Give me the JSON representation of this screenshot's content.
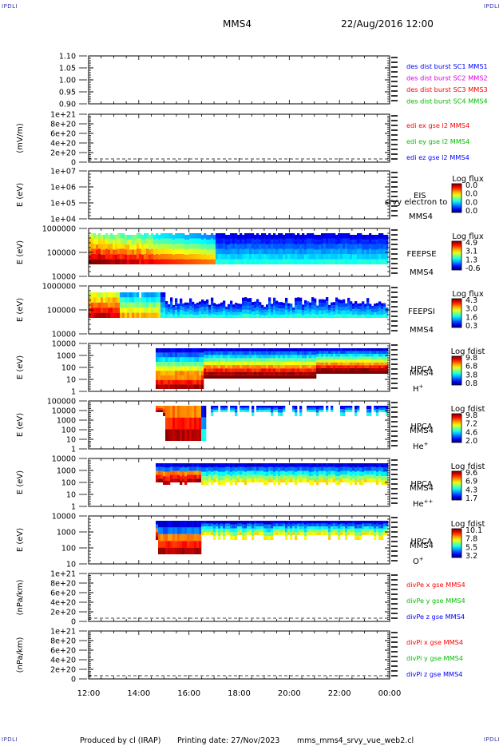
{
  "header": {
    "left": "MMS4",
    "right": "22/Aug/2016 12:00",
    "corner_tl": "IPDLI",
    "corner_tr": "IPDLI",
    "corner_bl": "IPDLI",
    "corner_br": "IPDLI"
  },
  "footer": {
    "producer": "Produced by cl (IRAP)",
    "printing": "Printing date: 27/Nov/2023",
    "script": "mms_mms4_srvy_vue_web2.cl"
  },
  "time_axis": {
    "tick_labels": [
      "12:00",
      "14:00",
      "16:00",
      "18:00",
      "20:00",
      "22:00",
      "00:00"
    ]
  },
  "colors": {
    "blue": "#0000ff",
    "magenta": "#e000e0",
    "red": "#ff0000",
    "green": "#00c000"
  },
  "chart_data": [
    {
      "type": "line",
      "ylim": [
        0.9,
        1.1
      ],
      "ytick_labels": [
        "1.10",
        "1.05",
        "1.00",
        "0.95",
        "0.90"
      ],
      "ylabel": "",
      "legend": [
        {
          "text": "des dist burst SC1 MMS1",
          "color": "#0000ff"
        },
        {
          "text": "des dist burst SC2 MMS2",
          "color": "#e000e0"
        },
        {
          "text": "des dist burst SC3 MMS3",
          "color": "#ff0000"
        },
        {
          "text": "des dist burst SC4 MMS4",
          "color": "#00c000"
        }
      ]
    },
    {
      "type": "line",
      "ylim": [
        0,
        1e+21
      ],
      "ytick_labels": [
        "1e+21",
        "8e+20",
        "6e+20",
        "4e+20",
        "2e+20",
        "0"
      ],
      "ylabel": "(mV/m)",
      "legend": [
        {
          "text": "edi ex gse l2 MMS4",
          "color": "#ff0000"
        },
        {
          "text": "edi ey gse l2 MMS4",
          "color": "#00c000"
        },
        {
          "text": "edi ez gse l2 MMS4",
          "color": "#0000ff"
        }
      ]
    },
    {
      "type": "heatmap",
      "ylabel": "E (eV)",
      "ytick_labels": [
        "1e+07",
        "1e+06",
        "1e+05",
        "1e+04"
      ],
      "instrument_lines": [
        "EIS",
        "srvy electron to",
        "MMS4"
      ],
      "colorbar": {
        "title": "Log flux",
        "ticks": [
          "0.0",
          "0.0",
          "0.0",
          "0.0"
        ]
      }
    },
    {
      "type": "heatmap",
      "ylabel": "E (eV)",
      "ytick_labels": [
        "1000000",
        "100000",
        "10000"
      ],
      "instrument_lines": [
        "FEEPSE",
        "MMS4"
      ],
      "colorbar": {
        "title": "Log flux",
        "ticks": [
          "4.9",
          "3.1",
          "1.3",
          "-0.6"
        ]
      }
    },
    {
      "type": "heatmap",
      "ylabel": "E (eV)",
      "ytick_labels": [
        "1000000",
        "100000",
        "10000"
      ],
      "instrument_lines": [
        "FEEPSI",
        "MMS4"
      ],
      "colorbar": {
        "title": "Log flux",
        "ticks": [
          "4.3",
          "3.0",
          "1.6",
          "0.3"
        ]
      }
    },
    {
      "type": "heatmap",
      "ylabel": "E (eV)",
      "ytick_labels": [
        "10000",
        "1000",
        "100",
        "10",
        "1"
      ],
      "instrument_lines": [
        "HPCA",
        "MMS4"
      ],
      "species": "H",
      "species_sup": "+",
      "colorbar": {
        "title": "Log fdist",
        "ticks": [
          "9.8",
          "6.8",
          "3.8",
          "0.8"
        ]
      }
    },
    {
      "type": "heatmap",
      "ylabel": "E (eV)",
      "ytick_labels": [
        "100000",
        "10000",
        "1000",
        "100",
        "10",
        "1"
      ],
      "instrument_lines": [
        "HPCA",
        "MMS4"
      ],
      "species": "He",
      "species_sup": "+",
      "colorbar": {
        "title": "Log fdist",
        "ticks": [
          "9.8",
          "7.2",
          "4.6",
          "2.0"
        ]
      }
    },
    {
      "type": "heatmap",
      "ylabel": "E (eV)",
      "ytick_labels": [
        "10000",
        "1000",
        "100",
        "10",
        "1"
      ],
      "instrument_lines": [
        "HPCA",
        "MMS4"
      ],
      "species": "He",
      "species_sup": "++",
      "colorbar": {
        "title": "Log fdist",
        "ticks": [
          "9.6",
          "6.9",
          "4.3",
          "1.7"
        ]
      }
    },
    {
      "type": "heatmap",
      "ylabel": "E (eV)",
      "ytick_labels": [
        "10000",
        "1000",
        "100",
        "10"
      ],
      "instrument_lines": [
        "HPCA",
        "MMS4"
      ],
      "species": "O",
      "species_sup": "+",
      "colorbar": {
        "title": "Log fdist",
        "ticks": [
          "10.1",
          "7.8",
          "5.5",
          "3.2"
        ]
      }
    },
    {
      "type": "line",
      "ylim": [
        0,
        1e+21
      ],
      "ytick_labels": [
        "1e+21",
        "8e+20",
        "6e+20",
        "4e+20",
        "2e+20",
        "0"
      ],
      "ylabel": "(nPa/km)",
      "legend": [
        {
          "text": "divPe x gse MMS4",
          "color": "#ff0000"
        },
        {
          "text": "divPe y gse MMS4",
          "color": "#00c000"
        },
        {
          "text": "divPe z gse MMS4",
          "color": "#0000ff"
        }
      ]
    },
    {
      "type": "line",
      "ylim": [
        0,
        1e+21
      ],
      "ytick_labels": [
        "1e+21",
        "8e+20",
        "6e+20",
        "4e+20",
        "2e+20",
        "0"
      ],
      "ylabel": "(nPa/km)",
      "legend": [
        {
          "text": "divPi x gse MMS4",
          "color": "#ff0000"
        },
        {
          "text": "divPi y gse MMS4",
          "color": "#00c000"
        },
        {
          "text": "divPi z gse MMS4",
          "color": "#0000ff"
        }
      ]
    }
  ]
}
